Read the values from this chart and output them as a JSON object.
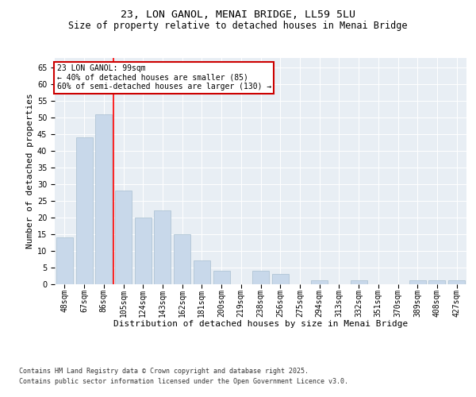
{
  "title_line1": "23, LON GANOL, MENAI BRIDGE, LL59 5LU",
  "title_line2": "Size of property relative to detached houses in Menai Bridge",
  "xlabel": "Distribution of detached houses by size in Menai Bridge",
  "ylabel": "Number of detached properties",
  "categories": [
    "48sqm",
    "67sqm",
    "86sqm",
    "105sqm",
    "124sqm",
    "143sqm",
    "162sqm",
    "181sqm",
    "200sqm",
    "219sqm",
    "238sqm",
    "256sqm",
    "275sqm",
    "294sqm",
    "313sqm",
    "332sqm",
    "351sqm",
    "370sqm",
    "389sqm",
    "408sqm",
    "427sqm"
  ],
  "values": [
    14,
    44,
    51,
    28,
    20,
    22,
    15,
    7,
    4,
    0,
    4,
    3,
    0,
    1,
    0,
    1,
    0,
    0,
    1,
    1,
    1
  ],
  "bar_color": "#c8d8ea",
  "bar_edge_color": "#a8bfd0",
  "red_line_x": 2.5,
  "ylim": [
    0,
    68
  ],
  "yticks": [
    0,
    5,
    10,
    15,
    20,
    25,
    30,
    35,
    40,
    45,
    50,
    55,
    60,
    65
  ],
  "annotation_text": "23 LON GANOL: 99sqm\n← 40% of detached houses are smaller (85)\n60% of semi-detached houses are larger (130) →",
  "annotation_box_color": "#ffffff",
  "annotation_box_edge": "#cc0000",
  "background_color": "#e8eef4",
  "footer_line1": "Contains HM Land Registry data © Crown copyright and database right 2025.",
  "footer_line2": "Contains public sector information licensed under the Open Government Licence v3.0.",
  "title_fontsize": 9.5,
  "subtitle_fontsize": 8.5,
  "axis_label_fontsize": 8,
  "tick_fontsize": 7,
  "annotation_fontsize": 7,
  "footer_fontsize": 6
}
